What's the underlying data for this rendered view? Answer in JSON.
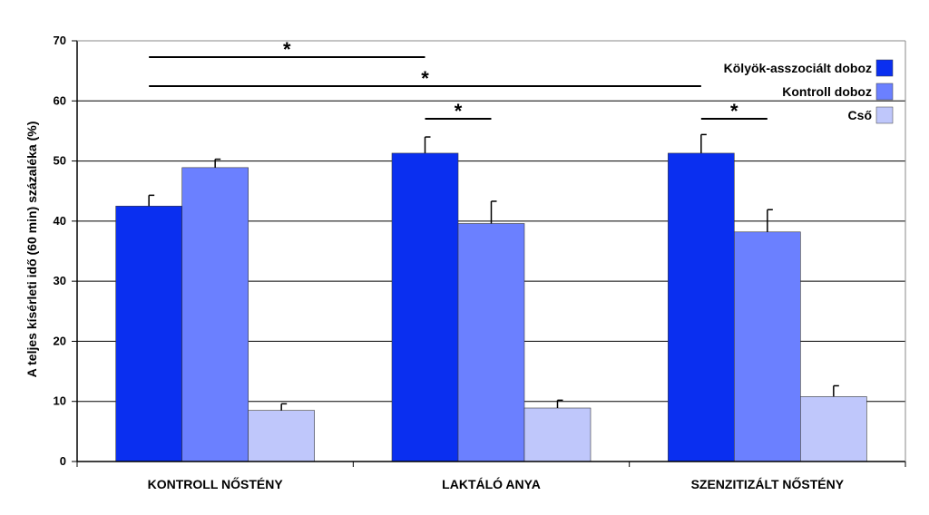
{
  "chart_data": {
    "type": "bar",
    "ylabel": "A teljes kísérleti idő (60 min) százaléka (%)",
    "ylim": [
      0,
      70
    ],
    "yticks": [
      0,
      10,
      20,
      30,
      40,
      50,
      60,
      70
    ],
    "grid": true,
    "legend_position": "top-right",
    "categories": [
      "KONTROLL NŐSTÉNY",
      "LAKTÁLÓ ANYA",
      "SZENZITIZÁLT NŐSTÉNY"
    ],
    "series": [
      {
        "name": "Kölyök-asszociált doboz",
        "color": "#0a2ff0",
        "values": [
          42.5,
          51.3,
          51.3
        ],
        "errors": [
          1.8,
          2.7,
          3.1
        ]
      },
      {
        "name": "Kontroll doboz",
        "color": "#6b80ff",
        "values": [
          48.9,
          39.6,
          38.2
        ],
        "errors": [
          1.4,
          3.7,
          3.7
        ]
      },
      {
        "name": "Cső",
        "color": "#bfc7fb",
        "values": [
          8.5,
          8.9,
          10.8
        ],
        "errors": [
          1.1,
          1.3,
          1.8
        ]
      }
    ],
    "significance": [
      {
        "from": [
          0,
          0
        ],
        "to": [
          1,
          0
        ],
        "label": "*"
      },
      {
        "from": [
          0,
          0
        ],
        "to": [
          2,
          0
        ],
        "label": "*"
      },
      {
        "from": [
          1,
          0
        ],
        "to": [
          1,
          1
        ],
        "label": "*"
      },
      {
        "from": [
          2,
          0
        ],
        "to": [
          2,
          1
        ],
        "label": "*"
      }
    ]
  }
}
